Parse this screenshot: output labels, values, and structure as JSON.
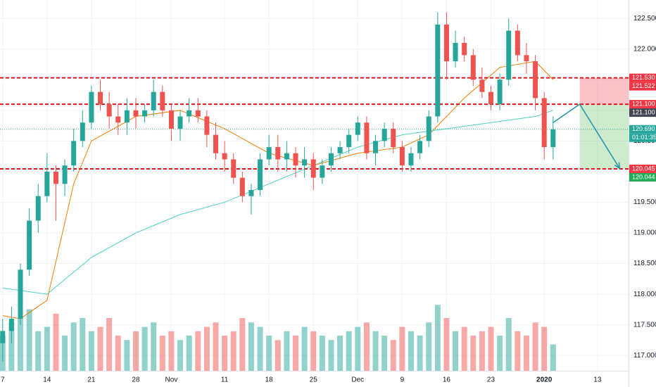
{
  "chart_data": {
    "type": "candlestick",
    "ylim": [
      116.75,
      122.8
    ],
    "yticks": [
      {
        "value": 117,
        "label": "117.000"
      },
      {
        "value": 117.5,
        "label": "117.500"
      },
      {
        "value": 118,
        "label": "118.000"
      },
      {
        "value": 118.5,
        "label": "118.500"
      },
      {
        "value": 119,
        "label": "119.000"
      },
      {
        "value": 119.5,
        "label": "119.500"
      },
      {
        "value": 120,
        "label": "120.000"
      },
      {
        "value": 120.5,
        "label": "120.500"
      },
      {
        "value": 121,
        "label": "121.000"
      },
      {
        "value": 121.5,
        "label": "121.500"
      },
      {
        "value": 122,
        "label": "122.000"
      },
      {
        "value": 122.5,
        "label": "122.500"
      }
    ],
    "xlim": [
      -0.3,
      70.5
    ],
    "xticks": [
      {
        "value": 0,
        "label": "7"
      },
      {
        "value": 5,
        "label": "14"
      },
      {
        "value": 10,
        "label": "21"
      },
      {
        "value": 15,
        "label": "28"
      },
      {
        "value": 19,
        "label": "Nov"
      },
      {
        "value": 25,
        "label": "11"
      },
      {
        "value": 30,
        "label": "18"
      },
      {
        "value": 35,
        "label": "25"
      },
      {
        "value": 40,
        "label": "Dec"
      },
      {
        "value": 45,
        "label": "9"
      },
      {
        "value": 50,
        "label": "16"
      },
      {
        "value": 55,
        "label": "23"
      },
      {
        "value": 61,
        "label": "2020"
      },
      {
        "value": 67,
        "label": "13"
      }
    ],
    "grid": true,
    "up_color": "#26a69a",
    "down_color": "#ef5350",
    "candles": [
      [
        117.2,
        117.6,
        116.9,
        117.4
      ],
      [
        117.4,
        117.8,
        117.2,
        117.6
      ],
      [
        117.6,
        118.5,
        117.5,
        118.4
      ],
      [
        118.4,
        119.4,
        118.3,
        119.2
      ],
      [
        119.2,
        119.8,
        119.0,
        119.6
      ],
      [
        119.6,
        120.3,
        119.5,
        120.0
      ],
      [
        120.0,
        120.1,
        119.2,
        119.8
      ],
      [
        119.8,
        120.2,
        119.6,
        120.1
      ],
      [
        120.1,
        120.7,
        120.0,
        120.5
      ],
      [
        120.5,
        121.0,
        120.4,
        120.8
      ],
      [
        120.8,
        121.4,
        120.7,
        121.3
      ],
      [
        121.3,
        121.5,
        121.0,
        121.1
      ],
      [
        121.1,
        121.3,
        120.7,
        120.9
      ],
      [
        120.9,
        121.1,
        120.6,
        120.8
      ],
      [
        120.8,
        121.2,
        120.6,
        121.0
      ],
      [
        121.0,
        121.2,
        120.7,
        120.9
      ],
      [
        120.9,
        121.1,
        120.8,
        121.0
      ],
      [
        121.0,
        121.5,
        120.9,
        121.3
      ],
      [
        121.3,
        121.4,
        120.9,
        121.0
      ],
      [
        121.0,
        121.1,
        120.5,
        120.7
      ],
      [
        120.7,
        121.0,
        120.5,
        120.9
      ],
      [
        120.9,
        121.2,
        120.8,
        121.0
      ],
      [
        121.0,
        121.2,
        120.8,
        120.9
      ],
      [
        120.9,
        121.0,
        120.4,
        120.6
      ],
      [
        120.6,
        120.8,
        120.2,
        120.3
      ],
      [
        120.3,
        120.5,
        120.0,
        120.2
      ],
      [
        120.2,
        120.3,
        119.8,
        119.9
      ],
      [
        119.9,
        120.0,
        119.5,
        119.6
      ],
      [
        119.6,
        119.8,
        119.3,
        119.7
      ],
      [
        119.7,
        120.3,
        119.6,
        120.2
      ],
      [
        120.2,
        120.6,
        120.1,
        120.4
      ],
      [
        120.4,
        120.6,
        120.0,
        120.2
      ],
      [
        120.2,
        120.5,
        120.0,
        120.3
      ],
      [
        120.3,
        120.4,
        119.9,
        120.1
      ],
      [
        120.1,
        120.4,
        119.9,
        120.2
      ],
      [
        120.2,
        120.3,
        119.7,
        119.9
      ],
      [
        119.9,
        120.2,
        119.8,
        120.1
      ],
      [
        120.1,
        120.4,
        120.0,
        120.3
      ],
      [
        120.3,
        120.5,
        120.2,
        120.4
      ],
      [
        120.4,
        120.7,
        120.3,
        120.6
      ],
      [
        120.6,
        120.9,
        120.5,
        120.8
      ],
      [
        120.8,
        120.9,
        120.2,
        120.3
      ],
      [
        120.3,
        120.6,
        120.1,
        120.5
      ],
      [
        120.5,
        120.8,
        120.4,
        120.7
      ],
      [
        120.7,
        120.8,
        120.3,
        120.4
      ],
      [
        120.4,
        120.5,
        120.0,
        120.1
      ],
      [
        120.1,
        120.4,
        120.0,
        120.3
      ],
      [
        120.3,
        120.6,
        120.2,
        120.5
      ],
      [
        120.5,
        121.0,
        120.4,
        120.9
      ],
      [
        120.9,
        122.6,
        120.8,
        122.4
      ],
      [
        122.4,
        122.6,
        121.5,
        121.8
      ],
      [
        121.8,
        122.3,
        121.7,
        122.1
      ],
      [
        122.1,
        122.2,
        121.8,
        121.9
      ],
      [
        121.9,
        122.0,
        121.4,
        121.5
      ],
      [
        121.5,
        121.7,
        121.2,
        121.3
      ],
      [
        121.3,
        121.4,
        121.0,
        121.1
      ],
      [
        121.1,
        121.6,
        121.0,
        121.5
      ],
      [
        121.5,
        122.5,
        121.4,
        122.3
      ],
      [
        122.3,
        122.4,
        121.8,
        121.9
      ],
      [
        121.9,
        122.1,
        121.6,
        121.8
      ],
      [
        121.8,
        121.9,
        121.0,
        121.2
      ],
      [
        121.2,
        121.3,
        120.2,
        120.4
      ],
      [
        120.4,
        120.9,
        120.2,
        120.69
      ]
    ],
    "volume": [
      40,
      55,
      60,
      70,
      45,
      50,
      65,
      40,
      55,
      60,
      45,
      50,
      60,
      40,
      35,
      45,
      50,
      55,
      40,
      45,
      35,
      40,
      45,
      50,
      55,
      40,
      45,
      60,
      55,
      50,
      40,
      35,
      45,
      40,
      50,
      45,
      40,
      35,
      40,
      45,
      50,
      55,
      45,
      40,
      35,
      50,
      45,
      40,
      55,
      75,
      60,
      45,
      50,
      40,
      45,
      50,
      40,
      60,
      45,
      40,
      55,
      50,
      30
    ],
    "vlim": [
      0,
      100
    ],
    "series": [
      {
        "color": "#f57c00",
        "x": [
          0,
          2,
          5,
          8,
          10,
          15,
          20,
          25,
          30,
          35,
          40,
          45,
          48,
          52,
          56,
          60,
          62
        ],
        "values": [
          117.65,
          117.6,
          117.9,
          119.8,
          120.5,
          120.9,
          121.0,
          120.7,
          120.3,
          120.1,
          120.3,
          120.4,
          120.6,
          121.2,
          121.7,
          121.8,
          121.5
        ]
      },
      {
        "color": "#4dd0c6",
        "x": [
          0,
          5,
          10,
          15,
          20,
          25,
          30,
          35,
          40,
          45,
          50,
          55,
          60,
          62
        ],
        "values": [
          118.1,
          118.0,
          118.6,
          119.0,
          119.3,
          119.5,
          119.8,
          120.1,
          120.4,
          120.6,
          120.7,
          120.8,
          120.9,
          121.0
        ]
      }
    ],
    "levels": [
      121.53,
      121.1,
      120.045
    ],
    "level_color": "#e3141b",
    "last_price": 120.69,
    "position": {
      "x": [
        65,
        70.5
      ],
      "entry": 121.1,
      "stop": 121.53,
      "target": 120.045
    },
    "projection": {
      "x": [
        62,
        65,
        69.5
      ],
      "values": [
        120.8,
        121.1,
        120.05
      ],
      "color": "#2196a8"
    },
    "price_labels": [
      {
        "value": 121.53,
        "label": "121.530",
        "color": "#f23645"
      },
      {
        "value": 121.522,
        "label": "121.522",
        "color": "#f23645"
      },
      {
        "value": 121.1,
        "label": "121.100",
        "color": "#f23645"
      },
      {
        "value": 121.1,
        "label": "121.100",
        "color": "#434651"
      },
      {
        "value": 120.69,
        "label": "120.690",
        "color": "#26a69a"
      },
      {
        "label": "01:01:35",
        "color": "#26a69a"
      },
      {
        "value": 120.045,
        "label": "120.045",
        "color": "#f23645"
      },
      {
        "value": 120.044,
        "label": "120.044",
        "color": "#22ab58"
      }
    ]
  }
}
